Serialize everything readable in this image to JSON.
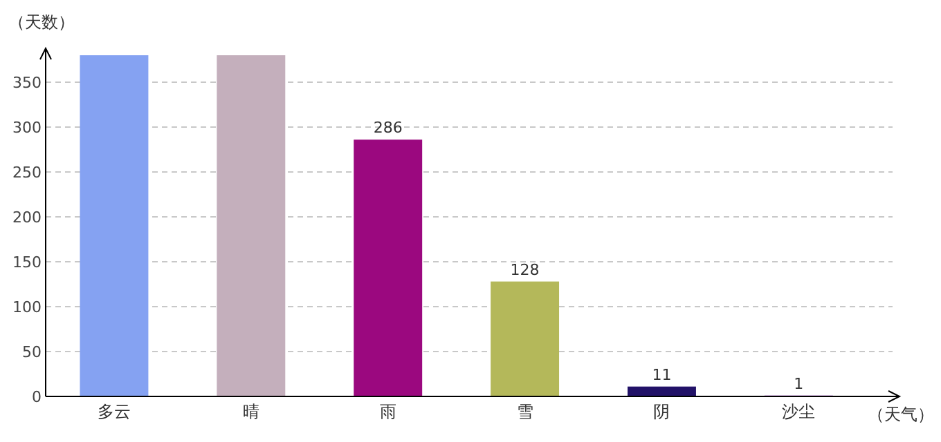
{
  "chart_data": {
    "type": "bar",
    "ylabel": "（天数）",
    "xlabel": "（天气）",
    "categories": [
      "多云",
      "晴",
      "雨",
      "雪",
      "阴",
      "沙尘"
    ],
    "values": [
      380,
      380,
      286,
      128,
      11,
      1
    ],
    "colors": [
      "#85a2f2",
      "#c4afbc",
      "#9b087f",
      "#b4b85a",
      "#221268",
      "#8e3bb3"
    ],
    "value_labels": [
      null,
      null,
      "286",
      "128",
      "11",
      "1"
    ],
    "ylim": [
      0,
      380
    ],
    "yticks": [
      0,
      50,
      100,
      150,
      200,
      250,
      300,
      350
    ],
    "grid": "y"
  }
}
